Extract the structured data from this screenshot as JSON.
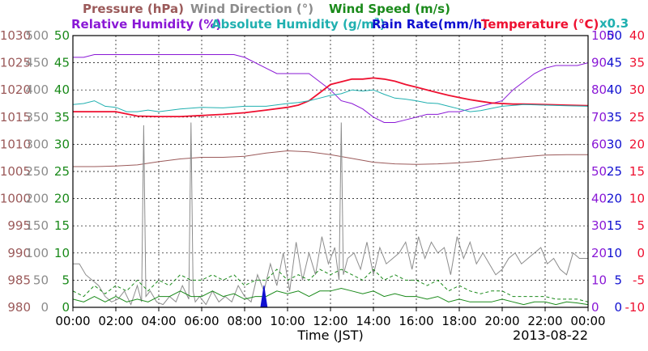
{
  "chart_data": {
    "type": "line",
    "xlabel": "Time (JST)",
    "date": "2013-08-22",
    "grid": true,
    "x_ticks": [
      "00:00",
      "02:00",
      "04:00",
      "06:00",
      "08:00",
      "10:00",
      "12:00",
      "14:00",
      "16:00",
      "18:00",
      "20:00",
      "22:00",
      "00:00"
    ],
    "x_values_hours": [
      0,
      2,
      4,
      6,
      8,
      10,
      12,
      14,
      16,
      18,
      20,
      22,
      24
    ],
    "legend": {
      "row1": [
        {
          "text": "Pressure (hPa)",
          "color": "#9b5a5a"
        },
        {
          "text": "Wind Direction (°)",
          "color": "#8c8c8c"
        },
        {
          "text": "Wind Speed (m/s)",
          "color": "#1a8a1a"
        }
      ],
      "row2": [
        {
          "text": "Relative Humidity (%)",
          "color": "#8a18d6"
        },
        {
          "text": "Absolute Humidity (g/m",
          "sup": "3",
          "tail": ")",
          "color": "#20b0b0"
        },
        {
          "text": "Rain Rate(mm/h)",
          "color": "#1010d0"
        },
        {
          "text": "Temperature (°C)",
          "color": "#ee1030"
        },
        {
          "text": "x0.3",
          "color": "#20b0b0"
        }
      ]
    },
    "axes": {
      "pressure": {
        "labels": [
          "1030",
          "1025",
          "1020",
          "1015",
          "1010",
          "1005",
          "1000",
          "995",
          "990",
          "985",
          "980"
        ],
        "color": "#9b5a5a",
        "range": [
          980,
          1030
        ]
      },
      "wind_dir": {
        "labels": [
          "500",
          "450",
          "400",
          "350",
          "300",
          "250",
          "200",
          "150",
          "100",
          "50",
          "0"
        ],
        "color": "#8c8c8c",
        "range": [
          0,
          500
        ]
      },
      "wind_speed": {
        "labels": [
          "50",
          "45",
          "40",
          "35",
          "30",
          "25",
          "20",
          "15",
          "10",
          "5",
          "0"
        ],
        "color": "#1a8a1a",
        "range": [
          0,
          50
        ]
      },
      "humidity": {
        "labels": [
          "100",
          "90",
          "80",
          "70",
          "60",
          "50",
          "40",
          "30",
          "20",
          "10",
          "0"
        ],
        "color": "#8a18d6",
        "range": [
          0,
          100
        ]
      },
      "rain": {
        "labels": [
          "50",
          "45",
          "40",
          "35",
          "30",
          "25",
          "20",
          "15",
          "10",
          "5",
          "0"
        ],
        "color": "#1010d0",
        "range": [
          0,
          50
        ]
      },
      "temperature": {
        "labels": [
          "40",
          "35",
          "30",
          "25",
          "20",
          "15",
          "10",
          "5",
          "0",
          "-5",
          "-10"
        ],
        "color": "#ee1030",
        "range": [
          -10,
          40
        ]
      }
    },
    "series": [
      {
        "key": "pressure",
        "color": "#9b5a5a",
        "unit_range": [
          980,
          1030
        ],
        "x": [
          0,
          1,
          2,
          3,
          4,
          5,
          6,
          7,
          8,
          9,
          10,
          11,
          12,
          13,
          14,
          15,
          16,
          17,
          18,
          19,
          20,
          21,
          22,
          23,
          24
        ],
        "y": [
          1005.9,
          1005.9,
          1006,
          1006.2,
          1006.8,
          1007.3,
          1007.6,
          1007.6,
          1007.8,
          1008.4,
          1008.8,
          1008.6,
          1008.1,
          1007.4,
          1006.7,
          1006.4,
          1006.3,
          1006.4,
          1006.6,
          1006.9,
          1007.3,
          1007.7,
          1008,
          1008.1,
          1008.1
        ]
      },
      {
        "key": "humidity",
        "color": "#8a18d6",
        "unit_range": [
          0,
          100
        ],
        "x": [
          0,
          0.5,
          1,
          2,
          3,
          4,
          5,
          6,
          7,
          7.5,
          8,
          9,
          9.5,
          10,
          10.5,
          11,
          11.5,
          12,
          12.5,
          13,
          13.5,
          14,
          14.5,
          15,
          15.5,
          16,
          16.5,
          17,
          17.5,
          18,
          18.5,
          19,
          19.5,
          20,
          20.5,
          21,
          21.5,
          22,
          22.5,
          23,
          23.5,
          24
        ],
        "y": [
          92,
          92,
          93,
          93,
          93,
          93,
          93,
          93,
          93,
          93,
          92,
          88,
          86,
          86,
          86,
          86,
          83,
          80,
          76,
          75,
          73,
          70,
          68,
          68,
          69,
          70,
          71,
          71,
          72,
          72,
          73,
          74,
          75,
          76,
          80,
          83,
          86,
          88,
          89,
          89,
          89,
          90
        ]
      },
      {
        "key": "temperature",
        "color": "#ee1030",
        "unit_range": [
          -10,
          40
        ],
        "x": [
          0,
          1,
          2,
          3,
          4,
          5,
          6,
          7,
          8,
          9,
          10,
          10.5,
          11,
          11.5,
          12,
          12.5,
          13,
          13.5,
          14,
          14.5,
          15,
          15.5,
          16,
          16.5,
          17,
          17.5,
          18,
          18.5,
          19,
          19.5,
          20,
          20.5,
          21,
          22,
          23,
          24
        ],
        "y": [
          26,
          26,
          26,
          25.2,
          25.1,
          25.1,
          25.3,
          25.5,
          25.8,
          26.3,
          26.8,
          27.2,
          28,
          29.5,
          31,
          31.5,
          32,
          32,
          32.2,
          32,
          31.6,
          31,
          30.5,
          30,
          29.5,
          29,
          28.6,
          28.2,
          27.9,
          27.6,
          27.5,
          27.4,
          27.4,
          27.3,
          27.2,
          27.1
        ]
      },
      {
        "key": "abs_humidity",
        "color": "#20b0b0",
        "unit_range": [
          -10,
          40
        ],
        "x": [
          0,
          0.5,
          1,
          1.5,
          2,
          2.5,
          3,
          3.5,
          4,
          5,
          6,
          7,
          8,
          9,
          10,
          10.5,
          11,
          11.5,
          12,
          12.5,
          13,
          13.5,
          14,
          14.5,
          15,
          15.5,
          16,
          16.5,
          17,
          17.5,
          18,
          18.5,
          19,
          19.5,
          20,
          21,
          22,
          23,
          24
        ],
        "y": [
          27.3,
          27.5,
          28,
          27,
          26.8,
          26,
          26,
          26.3,
          26,
          26.5,
          26.8,
          26.7,
          27,
          27,
          27.5,
          27.7,
          28,
          28.5,
          29,
          29.3,
          30,
          29.8,
          30,
          29.2,
          28.5,
          28.3,
          28,
          27.6,
          27.5,
          27,
          26.5,
          26,
          26.2,
          26.6,
          27,
          27.3,
          27.2,
          27.1,
          27
        ]
      },
      {
        "key": "wind_dir",
        "color": "#8c8c8c",
        "unit_range": [
          0,
          500
        ],
        "x": [
          0,
          0.3,
          0.6,
          0.9,
          1.2,
          1.5,
          1.8,
          2.1,
          2.4,
          2.7,
          3.0,
          3.2,
          3.3,
          3.4,
          3.6,
          3.9,
          4.2,
          4.5,
          4.8,
          5.1,
          5.4,
          5.5,
          5.6,
          5.7,
          5.9,
          6.2,
          6.5,
          6.8,
          7.1,
          7.4,
          7.7,
          8.0,
          8.3,
          8.6,
          8.9,
          9.2,
          9.5,
          9.8,
          10.1,
          10.4,
          10.7,
          11.0,
          11.3,
          11.6,
          11.9,
          12.2,
          12.4,
          12.5,
          12.6,
          12.8,
          13.1,
          13.4,
          13.7,
          14.0,
          14.3,
          14.6,
          14.9,
          15.2,
          15.5,
          15.8,
          16.1,
          16.4,
          16.7,
          17.0,
          17.3,
          17.6,
          17.9,
          18.2,
          18.5,
          18.8,
          19.1,
          19.4,
          19.7,
          20.0,
          20.3,
          20.6,
          20.9,
          21.2,
          21.5,
          21.8,
          22.1,
          22.4,
          22.7,
          23.0,
          23.3,
          23.6,
          24
        ],
        "y": [
          80,
          80,
          60,
          50,
          40,
          20,
          10,
          15,
          30,
          5,
          40,
          10,
          335,
          20,
          30,
          10,
          5,
          20,
          10,
          40,
          15,
          340,
          30,
          10,
          20,
          5,
          30,
          10,
          20,
          10,
          40,
          20,
          10,
          60,
          30,
          80,
          40,
          100,
          30,
          120,
          50,
          100,
          60,
          130,
          80,
          110,
          50,
          340,
          60,
          90,
          100,
          70,
          120,
          60,
          110,
          80,
          90,
          100,
          120,
          70,
          130,
          90,
          120,
          100,
          110,
          60,
          130,
          90,
          120,
          80,
          100,
          80,
          60,
          70,
          90,
          100,
          80,
          90,
          100,
          110,
          80,
          90,
          70,
          60,
          100,
          90,
          90
        ]
      },
      {
        "key": "wind_speed",
        "color": "#1a8a1a",
        "unit_range": [
          0,
          50
        ],
        "x": [
          0,
          0.5,
          1,
          1.5,
          2,
          2.5,
          3,
          3.5,
          4,
          4.5,
          5,
          5.5,
          6,
          6.5,
          7,
          7.5,
          8,
          8.5,
          9,
          9.5,
          10,
          10.5,
          11,
          11.5,
          12,
          12.5,
          13,
          13.5,
          14,
          14.5,
          15,
          15.5,
          16,
          16.5,
          17,
          17.5,
          18,
          18.5,
          19,
          19.5,
          20,
          20.5,
          21,
          21.5,
          22,
          22.5,
          23,
          23.5,
          24
        ],
        "y": [
          1.5,
          1,
          2,
          1,
          2,
          1,
          1.5,
          1,
          2,
          2,
          3,
          2,
          2,
          3,
          2,
          2.5,
          1.5,
          2,
          2,
          3,
          2.5,
          3,
          2,
          3,
          3,
          3.5,
          3,
          2.5,
          3,
          2,
          2.5,
          2,
          2,
          1.5,
          2,
          1,
          1.5,
          1,
          1,
          1,
          1.5,
          1,
          0.5,
          1,
          1,
          0.5,
          1,
          0.8,
          0.5
        ]
      },
      {
        "key": "gust",
        "color": "#1a8a1a",
        "dashed": true,
        "unit_range": [
          0,
          50
        ],
        "x": [
          0,
          0.5,
          1,
          1.5,
          2,
          2.5,
          3,
          3.5,
          4,
          4.5,
          5,
          5.5,
          6,
          6.5,
          7,
          7.5,
          8,
          8.5,
          9,
          9.5,
          10,
          10.5,
          11,
          11.5,
          12,
          12.5,
          13,
          13.5,
          14,
          14.5,
          15,
          15.5,
          16,
          16.5,
          17,
          17.5,
          18,
          18.5,
          19,
          19.5,
          20,
          20.5,
          21,
          21.5,
          22,
          22.5,
          23,
          23.5,
          24
        ],
        "y": [
          3,
          2,
          4,
          2.5,
          4,
          3,
          5,
          3,
          5,
          4,
          6,
          5,
          5,
          6,
          5,
          6,
          4,
          5,
          5,
          7,
          5,
          6,
          5,
          7,
          6,
          7,
          6,
          5,
          7,
          5,
          6,
          5,
          5,
          4,
          5,
          3,
          4,
          3,
          2.5,
          3,
          3,
          2,
          2,
          2,
          2,
          1.5,
          1.5,
          1.5,
          1
        ]
      },
      {
        "key": "rain",
        "color": "#1010d0",
        "unit_range": [
          0,
          50
        ],
        "x": [
          8.75,
          8.85,
          8.9,
          8.95,
          9.05
        ],
        "y": [
          0,
          2.5,
          4,
          2.5,
          0
        ]
      }
    ]
  }
}
